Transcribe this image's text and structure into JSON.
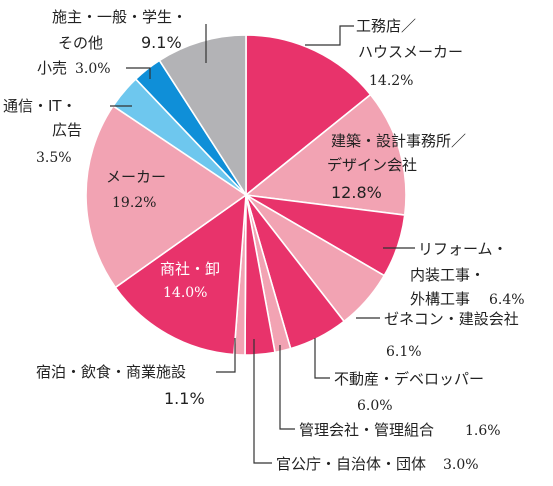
{
  "chart_data": {
    "type": "pie",
    "title": "",
    "colors": {
      "magenta": "#e8336b",
      "pink": "#f2a3b3",
      "gray": "#b3b3b6",
      "blue": "#0f8fd8",
      "lightblue": "#6ec7ee"
    },
    "slices": [
      {
        "label_lines": [
          "工務店／",
          "ハウスメーカー"
        ],
        "value_text": "14.2%",
        "value": 14.2,
        "color": "#e8336b"
      },
      {
        "label_lines": [
          "建築・設計事務所／",
          "デザイン会社"
        ],
        "value_text": "12.8%",
        "value": 12.8,
        "color": "#f2a3b3"
      },
      {
        "label_lines": [
          "リフォーム・",
          "内装工事・",
          "外構工事"
        ],
        "value_text": "6.4%",
        "value": 6.4,
        "color": "#e8336b"
      },
      {
        "label_lines": [
          "ゼネコン・建設会社"
        ],
        "value_text": "6.1%",
        "value": 6.1,
        "color": "#f2a3b3"
      },
      {
        "label_lines": [
          "不動産・デベロッパー"
        ],
        "value_text": "6.0%",
        "value": 6.0,
        "color": "#e8336b"
      },
      {
        "label_lines": [
          "管理会社・管理組合"
        ],
        "value_text": "1.6%",
        "value": 1.6,
        "color": "#f2a3b3"
      },
      {
        "label_lines": [
          "官公庁・自治体・団体"
        ],
        "value_text": "3.0%",
        "value": 3.0,
        "color": "#e8336b"
      },
      {
        "label_lines": [
          "宿泊・飲食・商業施設"
        ],
        "value_text": "1.1%",
        "value": 1.1,
        "color": "#f2a3b3"
      },
      {
        "label_lines": [
          "商社・卸"
        ],
        "value_text": "14.0%",
        "value": 14.0,
        "color": "#e8336b"
      },
      {
        "label_lines": [
          "メーカー"
        ],
        "value_text": "19.2%",
        "value": 19.2,
        "color": "#f2a3b3"
      },
      {
        "label_lines": [
          "通信・IT・",
          "広告"
        ],
        "value_text": "3.5%",
        "value": 3.5,
        "color": "#6ec7ee"
      },
      {
        "label_lines": [
          "小売"
        ],
        "value_text": "3.0%",
        "value": 3.0,
        "color": "#0f8fd8"
      },
      {
        "label_lines": [
          "施主・一般・学生・",
          "その他"
        ],
        "value_text": "9.1%",
        "value": 9.1,
        "color": "#b3b3b6"
      }
    ]
  }
}
